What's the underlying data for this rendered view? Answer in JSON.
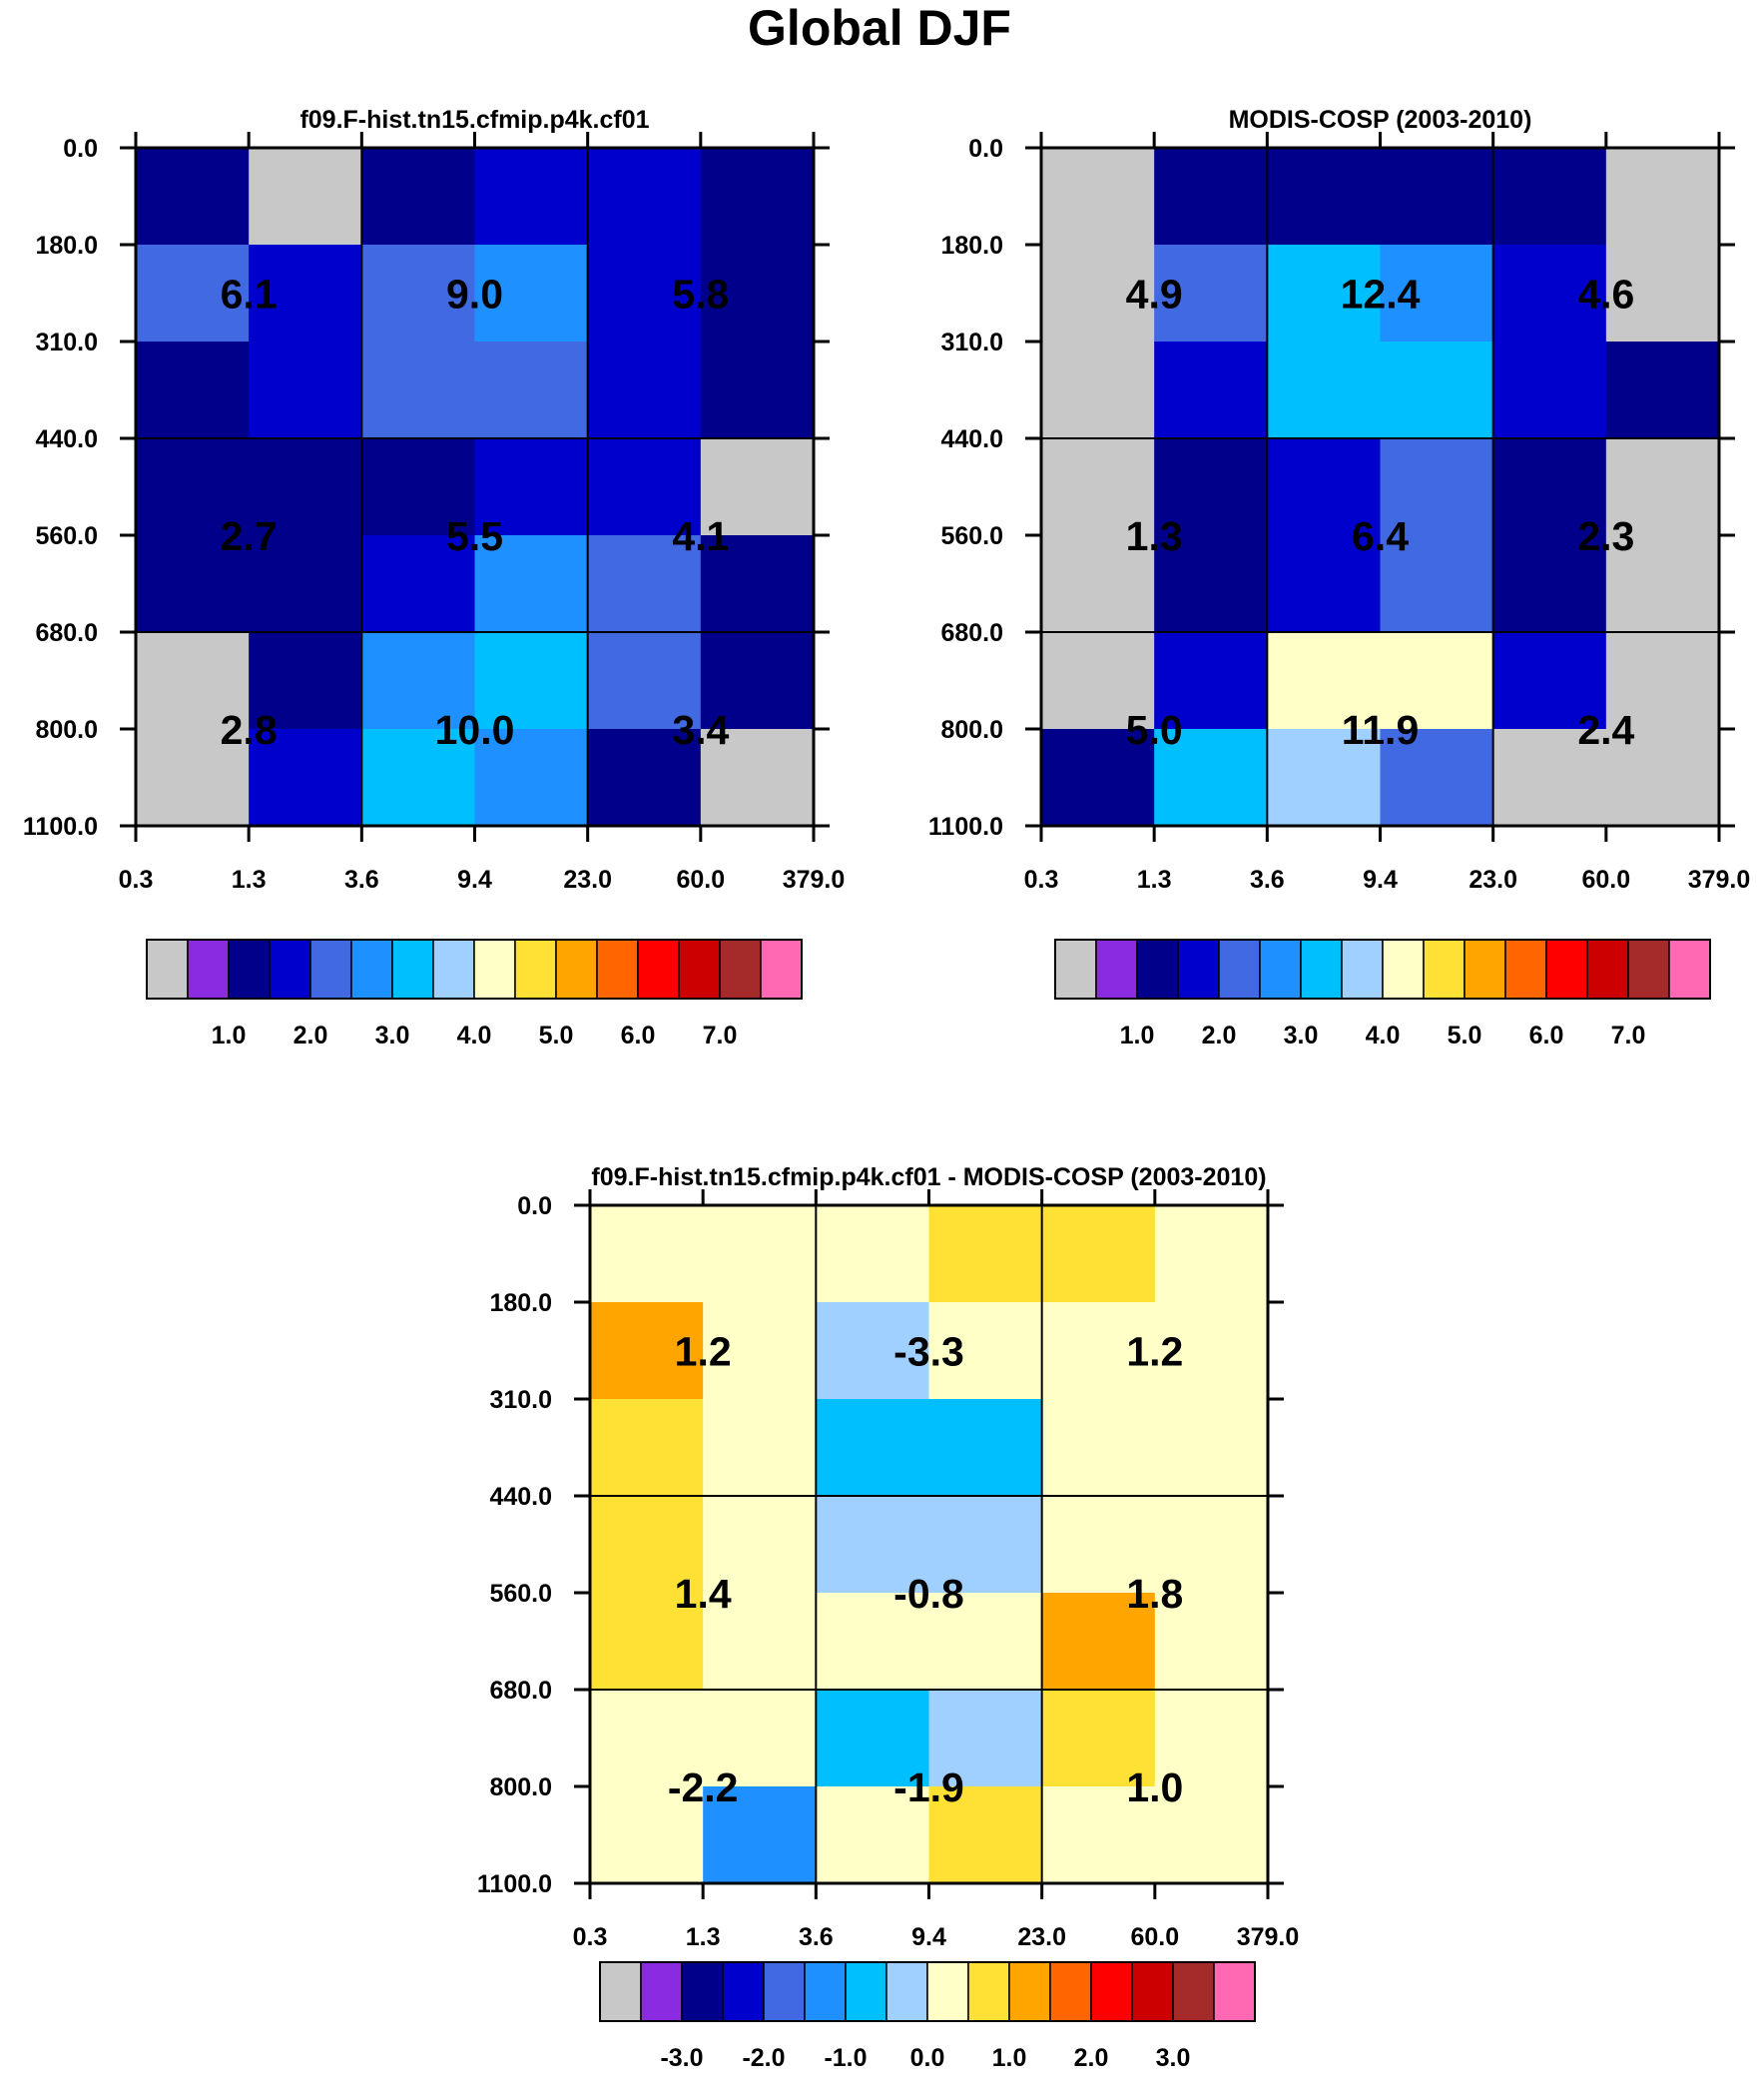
{
  "title": "Global DJF",
  "chart_data": [
    {
      "type": "heatmap",
      "title": "f09.F-hist.tn15.cfmip.p4k.cf01",
      "xticks": [
        "0.3",
        "1.3",
        "3.6",
        "9.4",
        "23.0",
        "60.0",
        "379.0"
      ],
      "yticks": [
        "0.0",
        "180.0",
        "310.0",
        "440.0",
        "560.0",
        "680.0",
        "800.0",
        "1100.0"
      ],
      "cells": [
        [
          2,
          0,
          2,
          3,
          3,
          2
        ],
        [
          4,
          3,
          4,
          5,
          3,
          2
        ],
        [
          2,
          3,
          4,
          4,
          3,
          2
        ],
        [
          2,
          2,
          2,
          3,
          3,
          0
        ],
        [
          2,
          2,
          3,
          5,
          4,
          2
        ],
        [
          0,
          2,
          5,
          6,
          4,
          2
        ],
        [
          0,
          3,
          6,
          5,
          2,
          0
        ]
      ],
      "annotations": [
        [
          "6.1",
          "9.0",
          "5.8"
        ],
        [
          "2.7",
          "5.5",
          "4.1"
        ],
        [
          "2.8",
          "10.0",
          "3.4"
        ]
      ],
      "colorbar_labels": [
        "1.0",
        "2.0",
        "3.0",
        "4.0",
        "5.0",
        "6.0",
        "7.0"
      ]
    },
    {
      "type": "heatmap",
      "title": "MODIS-COSP (2003-2010)",
      "xticks": [
        "0.3",
        "1.3",
        "3.6",
        "9.4",
        "23.0",
        "60.0",
        "379.0"
      ],
      "yticks": [
        "0.0",
        "180.0",
        "310.0",
        "440.0",
        "560.0",
        "680.0",
        "800.0",
        "1100.0"
      ],
      "cells": [
        [
          0,
          2,
          2,
          2,
          2,
          0
        ],
        [
          0,
          4,
          6,
          5,
          3,
          0
        ],
        [
          0,
          3,
          6,
          6,
          3,
          2
        ],
        [
          0,
          2,
          3,
          4,
          2,
          0
        ],
        [
          0,
          2,
          3,
          4,
          2,
          0
        ],
        [
          0,
          3,
          8,
          8,
          3,
          0
        ],
        [
          2,
          6,
          7,
          4,
          0,
          0
        ]
      ],
      "annotations": [
        [
          "4.9",
          "12.4",
          "4.6"
        ],
        [
          "1.3",
          "6.4",
          "2.3"
        ],
        [
          "5.0",
          "11.9",
          "2.4"
        ]
      ],
      "colorbar_labels": [
        "1.0",
        "2.0",
        "3.0",
        "4.0",
        "5.0",
        "6.0",
        "7.0"
      ]
    },
    {
      "type": "heatmap",
      "title": "f09.F-hist.tn15.cfmip.p4k.cf01 - MODIS-COSP (2003-2010)",
      "xticks": [
        "0.3",
        "1.3",
        "3.6",
        "9.4",
        "23.0",
        "60.0",
        "379.0"
      ],
      "yticks": [
        "0.0",
        "180.0",
        "310.0",
        "440.0",
        "560.0",
        "680.0",
        "800.0",
        "1100.0"
      ],
      "cells": [
        [
          8,
          8,
          8,
          9,
          9,
          8
        ],
        [
          10,
          8,
          7,
          8,
          8,
          8
        ],
        [
          9,
          8,
          6,
          6,
          8,
          8
        ],
        [
          9,
          8,
          7,
          7,
          8,
          8
        ],
        [
          9,
          8,
          8,
          8,
          10,
          8
        ],
        [
          8,
          8,
          6,
          7,
          9,
          8
        ],
        [
          8,
          5,
          8,
          9,
          8,
          8
        ]
      ],
      "annotations": [
        [
          "1.2",
          "-3.3",
          "1.2"
        ],
        [
          "1.4",
          "-0.8",
          "1.8"
        ],
        [
          "-2.2",
          "-1.9",
          "1.0"
        ]
      ],
      "colorbar_labels": [
        "-3.0",
        "-2.0",
        "-1.0",
        "0.0",
        "1.0",
        "2.0",
        "3.0"
      ]
    }
  ],
  "palette": [
    "#c8c8c8",
    "#8a2be2",
    "#00008b",
    "#0000cd",
    "#4169e1",
    "#1e90ff",
    "#00bfff",
    "#a0d0ff",
    "#ffffc8",
    "#ffe135",
    "#ffa500",
    "#ff6600",
    "#ff0000",
    "#cc0000",
    "#a52a2a",
    "#ff69b4"
  ]
}
